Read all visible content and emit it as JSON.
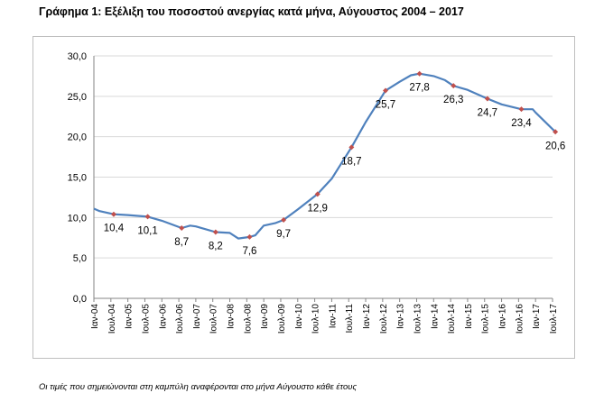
{
  "title": "Γράφημα 1: Εξέλιξη του ποσοστού ανεργίας κατά μήνα, Αύγουστος 2004 – 2017",
  "footnote": "Οι τιμές που σημειώνονται στη καμπύλη αναφέρονται στο μήνα Αύγουστο κάθε έτους",
  "colors": {
    "line": "#4f81bd",
    "marker": "#c0504d",
    "grid": "#d9d9d9",
    "axis": "#868686"
  },
  "chart_data": {
    "type": "line",
    "title": "Γράφημα 1: Εξέλιξη του ποσοστού ανεργίας κατά μήνα, Αύγουστος 2004 – 2017",
    "xlabel": "",
    "ylabel": "",
    "ylim": [
      0,
      30
    ],
    "yticks": [
      "0,0",
      "5,0",
      "10,0",
      "15,0",
      "20,0",
      "25,0",
      "30,0"
    ],
    "ytick_values": [
      0,
      5,
      10,
      15,
      20,
      25,
      30
    ],
    "grid": true,
    "x_start": "Ιαν-04",
    "x_end": "Ιουλ-17",
    "categories": [
      "Ιαν-04",
      "Ιουλ-04",
      "Ιαν-05",
      "Ιουλ-05",
      "Ιαν-06",
      "Ιουλ-06",
      "Ιαν-07",
      "Ιουλ-07",
      "Ιαν-08",
      "Ιουλ-08",
      "Ιαν-09",
      "Ιουλ-09",
      "Ιαν-10",
      "Ιουλ-10",
      "Ιαν-11",
      "Ιουλ-11",
      "Ιαν-12",
      "Ιουλ-12",
      "Ιαν-13",
      "Ιουλ-13",
      "Ιαν-14",
      "Ιουλ-14",
      "Ιαν-15",
      "Ιουλ-15",
      "Ιαν-16",
      "Ιουλ-16",
      "Ιαν-17",
      "Ιουλ-17"
    ],
    "series": [
      {
        "points": [
          [
            "Ιαν-04",
            11.1
          ],
          [
            "Μαρ-04",
            10.8
          ],
          [
            "Αυγ-04",
            10.4
          ],
          [
            "Ιαν-05",
            10.3
          ],
          [
            "Αυγ-05",
            10.1
          ],
          [
            "Ιαν-06",
            9.6
          ],
          [
            "Αυγ-06",
            8.7
          ],
          [
            "Νοε-06",
            9.0
          ],
          [
            "Ιαν-07",
            8.9
          ],
          [
            "Αυγ-07",
            8.2
          ],
          [
            "Ιαν-08",
            8.1
          ],
          [
            "Απρ-08",
            7.4
          ],
          [
            "Αυγ-08",
            7.6
          ],
          [
            "Οκτ-08",
            7.8
          ],
          [
            "Ιαν-09",
            9.0
          ],
          [
            "Μαΐ-09",
            9.3
          ],
          [
            "Αυγ-09",
            9.7
          ],
          [
            "Ιαν-10",
            11.0
          ],
          [
            "Αυγ-10",
            12.9
          ],
          [
            "Ιαν-11",
            14.8
          ],
          [
            "Αυγ-11",
            18.7
          ],
          [
            "Ιαν-12",
            21.8
          ],
          [
            "Αυγ-12",
            25.7
          ],
          [
            "Ιαν-13",
            26.8
          ],
          [
            "Μαΐ-13",
            27.6
          ],
          [
            "Αυγ-13",
            27.8
          ],
          [
            "Ιαν-14",
            27.5
          ],
          [
            "Μαΐ-14",
            27.0
          ],
          [
            "Αυγ-14",
            26.3
          ],
          [
            "Ιαν-15",
            25.8
          ],
          [
            "Αυγ-15",
            24.7
          ],
          [
            "Ιαν-16",
            24.0
          ],
          [
            "Αυγ-16",
            23.4
          ],
          [
            "Δεκ-16",
            23.4
          ],
          [
            "Ιαν-17",
            23.0
          ],
          [
            "Αυγ-17",
            20.6
          ]
        ]
      }
    ],
    "markers": [
      {
        "x": "Αυγ-04",
        "value": 10.4,
        "label": "10,4"
      },
      {
        "x": "Αυγ-05",
        "value": 10.1,
        "label": "10,1"
      },
      {
        "x": "Αυγ-06",
        "value": 8.7,
        "label": "8,7"
      },
      {
        "x": "Αυγ-07",
        "value": 8.2,
        "label": "8,2"
      },
      {
        "x": "Αυγ-08",
        "value": 7.6,
        "label": "7,6"
      },
      {
        "x": "Αυγ-09",
        "value": 9.7,
        "label": "9,7"
      },
      {
        "x": "Αυγ-10",
        "value": 12.9,
        "label": "12,9"
      },
      {
        "x": "Αυγ-11",
        "value": 18.7,
        "label": "18,7"
      },
      {
        "x": "Αυγ-12",
        "value": 25.7,
        "label": "25,7"
      },
      {
        "x": "Αυγ-13",
        "value": 27.8,
        "label": "27,8"
      },
      {
        "x": "Αυγ-14",
        "value": 26.3,
        "label": "26,3"
      },
      {
        "x": "Αυγ-15",
        "value": 24.7,
        "label": "24,7"
      },
      {
        "x": "Αυγ-16",
        "value": 23.4,
        "label": "23,4"
      },
      {
        "x": "Αυγ-17",
        "value": 20.6,
        "label": "20,6"
      }
    ]
  }
}
